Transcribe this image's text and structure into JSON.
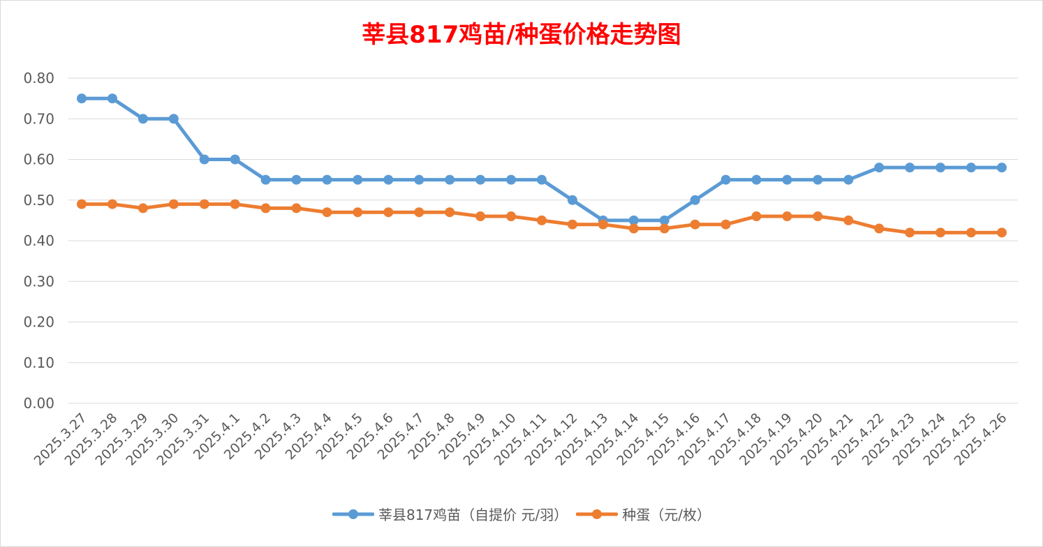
{
  "title": "莘县817鸡苗/种蛋价格走势图",
  "colors": {
    "title": "#ff0000",
    "series_chick": "#5b9bd5",
    "series_egg": "#ed7d31",
    "grid": "#d9d9d9",
    "axis_text": "#595959"
  },
  "chart_data": {
    "type": "line",
    "title": "莘县817鸡苗/种蛋价格走势图",
    "xlabel": "",
    "ylabel": "",
    "ylim": [
      0,
      0.8
    ],
    "ytick_step": 0.1,
    "ytick_format_decimals": 2,
    "grid": "horizontal",
    "legend_position": "bottom",
    "categories": [
      "2025.3.27",
      "2025.3.28",
      "2025.3.29",
      "2025.3.30",
      "2025.3.31",
      "2025.4.1",
      "2025.4.2",
      "2025.4.3",
      "2025.4.4",
      "2025.4.5",
      "2025.4.6",
      "2025.4.7",
      "2025.4.8",
      "2025.4.9",
      "2025.4.10",
      "2025.4.11",
      "2025.4.12",
      "2025.4.13",
      "2025.4.14",
      "2025.4.15",
      "2025.4.16",
      "2025.4.17",
      "2025.4.18",
      "2025.4.19",
      "2025.4.20",
      "2025.4.21",
      "2025.4.22",
      "2025.4.23",
      "2025.4.24",
      "2025.4.25",
      "2025.4.26"
    ],
    "series": [
      {
        "name": "莘县817鸡苗（自提价 元/羽）",
        "color_key": "series_chick",
        "values": [
          0.75,
          0.75,
          0.7,
          0.7,
          0.6,
          0.6,
          0.55,
          0.55,
          0.55,
          0.55,
          0.55,
          0.55,
          0.55,
          0.55,
          0.55,
          0.55,
          0.5,
          0.45,
          0.45,
          0.45,
          0.5,
          0.55,
          0.55,
          0.55,
          0.55,
          0.55,
          0.58,
          0.58,
          0.58,
          0.58,
          0.58
        ]
      },
      {
        "name": "种蛋（元/枚）",
        "color_key": "series_egg",
        "values": [
          0.49,
          0.49,
          0.48,
          0.49,
          0.49,
          0.49,
          0.48,
          0.48,
          0.47,
          0.47,
          0.47,
          0.47,
          0.47,
          0.46,
          0.46,
          0.45,
          0.44,
          0.44,
          0.43,
          0.43,
          0.44,
          0.44,
          0.46,
          0.46,
          0.46,
          0.45,
          0.43,
          0.42,
          0.42,
          0.42,
          0.42
        ]
      }
    ]
  }
}
